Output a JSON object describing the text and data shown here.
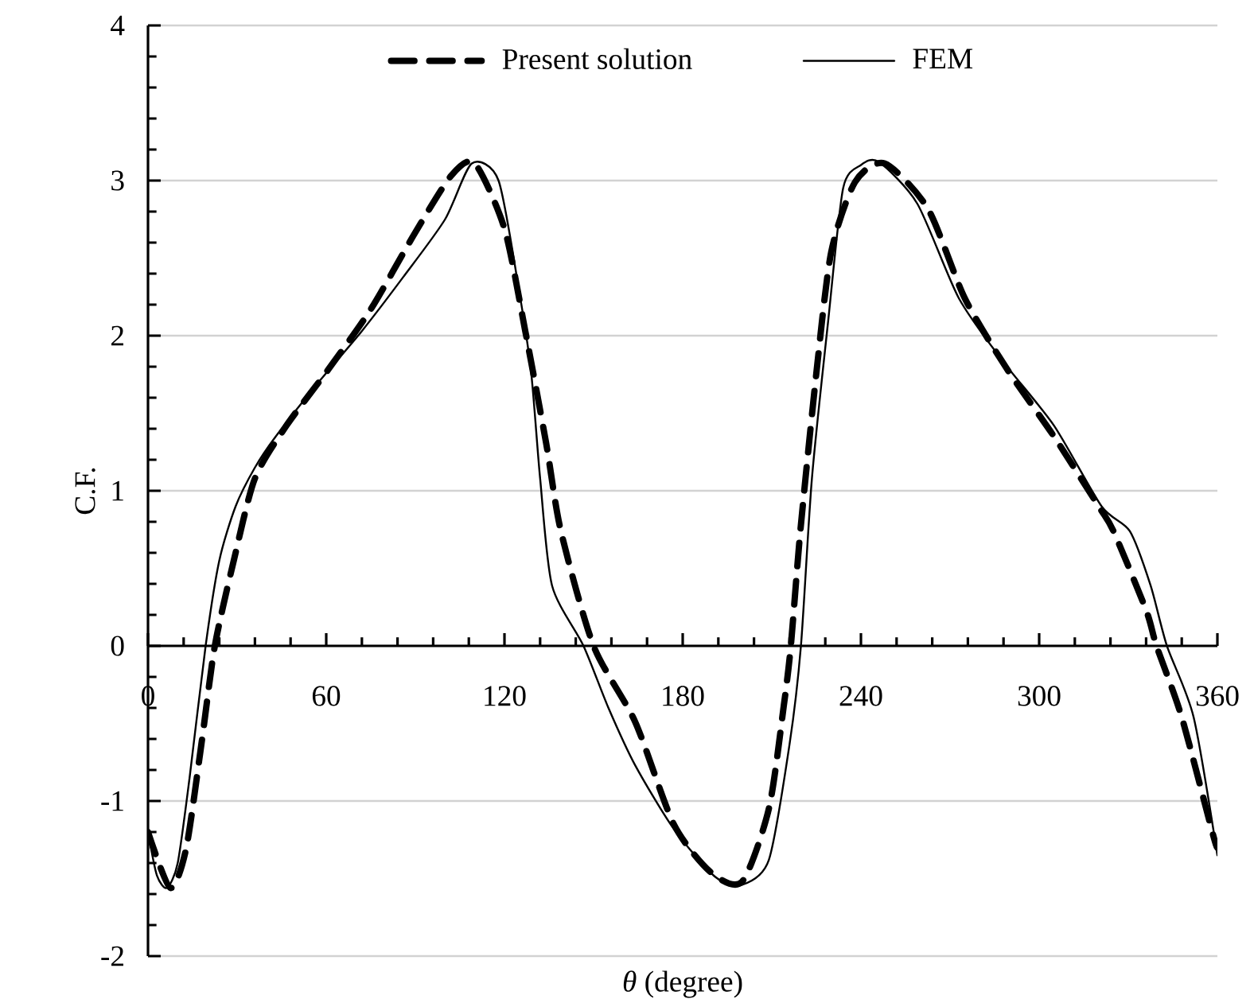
{
  "chart_data": {
    "type": "line",
    "xlabel": "*θ* (degree)",
    "ylabel": "C.F.",
    "xlim": [
      0,
      360
    ],
    "xticks": [
      0,
      60,
      120,
      180,
      240,
      300,
      360
    ],
    "ylim": [
      -2,
      4
    ],
    "yticks": [
      -2,
      -1,
      0,
      1,
      2,
      3,
      4
    ],
    "grid": "y",
    "legend": "top",
    "series": [
      {
        "name": "Present solution",
        "color": "#000000",
        "line_style": "dashed",
        "x": [
          0,
          7.5,
          12.8,
          18,
          22.5,
          29,
          36,
          46.6,
          61,
          75,
          89.5,
          102,
          110,
          120,
          127,
          134,
          139,
          150,
          164,
          177,
          189.5,
          200,
          209,
          214,
          216.4,
          219.6,
          225,
          230,
          238,
          248,
          262.5,
          275,
          289,
          305,
          320,
          325,
          336,
          339.5,
          348,
          359,
          360
        ],
        "values": [
          -1.2,
          -1.56,
          -1.31,
          -0.63,
          0,
          0.56,
          1.08,
          1.42,
          1.79,
          2.17,
          2.65,
          3.03,
          3.11,
          2.69,
          2.03,
          1.31,
          0.74,
          0,
          -0.49,
          -1.15,
          -1.46,
          -1.52,
          -1.05,
          -0.39,
          0,
          0.74,
          1.76,
          2.54,
          2.99,
          3.11,
          2.82,
          2.24,
          1.79,
          1.35,
          0.9,
          0.74,
          0.23,
          0,
          -0.46,
          -1.25,
          -1.27
        ]
      },
      {
        "name": "FEM",
        "color": "#000000",
        "line_style": "solid",
        "x": [
          0,
          3,
          6.4,
          10,
          14,
          19.4,
          24,
          29.5,
          36,
          43,
          57,
          72,
          86,
          100,
          109,
          118,
          125,
          129,
          132,
          136,
          146.6,
          155,
          164,
          177,
          191,
          200,
          209,
          216,
          219.8,
          223.5,
          229,
          234,
          240,
          246,
          259,
          273,
          288,
          305,
          321,
          330.5,
          337.5,
          343,
          352,
          360
        ],
        "values": [
          -1.2,
          -1.48,
          -1.56,
          -1.4,
          -0.85,
          0,
          0.55,
          0.9,
          1.15,
          1.35,
          1.69,
          2.03,
          2.38,
          2.75,
          3.11,
          3.0,
          2.28,
          1.76,
          1.08,
          0.39,
          0,
          -0.4,
          -0.77,
          -1.18,
          -1.49,
          -1.54,
          -1.38,
          -0.63,
          0,
          1.08,
          2.1,
          2.95,
          3.1,
          3.12,
          2.85,
          2.24,
          1.83,
          1.42,
          0.9,
          0.74,
          0.39,
          0,
          -0.46,
          -1.35
        ]
      }
    ]
  }
}
